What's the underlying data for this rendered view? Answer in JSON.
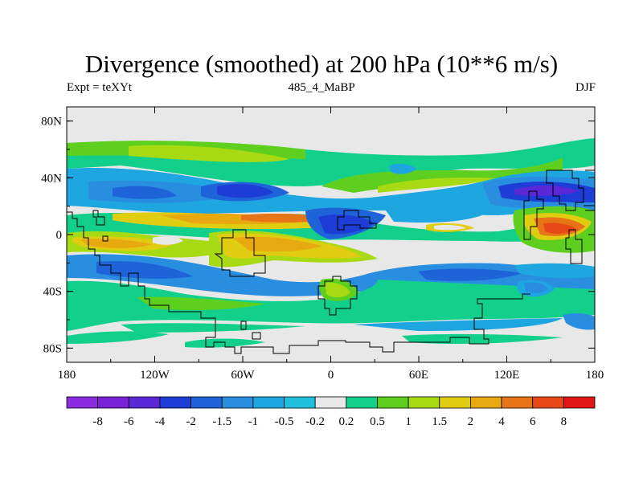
{
  "title": "Divergence (smoothed) at 200 hPa (10**6 m/s)",
  "subtitle_left": "Expt = teXYt",
  "subtitle_center": "485_4_MaBP",
  "subtitle_right": "DJF",
  "map": {
    "projection": "cylindrical-equidistant",
    "lon_range": [
      -180,
      180
    ],
    "lat_range": [
      -90,
      90
    ],
    "x_tick_labels": [
      "180",
      "120W",
      "60W",
      "0",
      "60E",
      "120E",
      "180"
    ],
    "y_tick_labels": [
      "80N",
      "40N",
      "0",
      "40S",
      "80S"
    ],
    "coastline": "coarse-grid"
  },
  "colorbar": {
    "labels": [
      "-8",
      "-6",
      "-4",
      "-2",
      "-1.5",
      "-1",
      "-0.5",
      "-0.2",
      "0.2",
      "0.5",
      "1",
      "1.5",
      "2",
      "4",
      "6",
      "8"
    ],
    "colors": [
      "#8a2be2",
      "#7a22d8",
      "#5a28d6",
      "#1e3cd6",
      "#1e64d8",
      "#2a8ee0",
      "#1ea6e0",
      "#20c0dc",
      "#e8e8e8",
      "#12d08c",
      "#5ecf1e",
      "#a8da14",
      "#e0cc10",
      "#e8a810",
      "#e87418",
      "#e84818",
      "#e21616"
    ]
  },
  "colors": {
    "neutral": "#e8e8e8",
    "coastline": "#000000"
  }
}
